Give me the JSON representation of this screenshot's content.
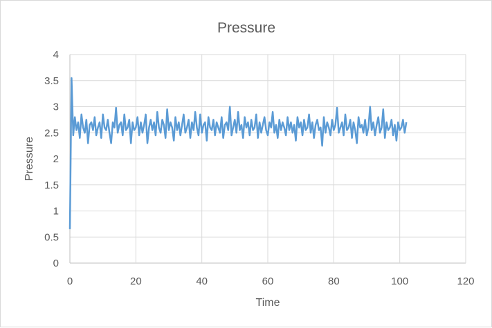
{
  "chart_data": {
    "type": "line",
    "title": "Pressure",
    "xlabel": "Time",
    "ylabel": "Pressure",
    "xlim": [
      0,
      120
    ],
    "ylim": [
      0,
      4
    ],
    "xticks": [
      "0",
      "20",
      "40",
      "60",
      "80",
      "100",
      "120"
    ],
    "yticks": [
      "0",
      "0.5",
      "1",
      "1.5",
      "2",
      "2.5",
      "3",
      "3.5",
      "4"
    ],
    "grid": true,
    "legend": "none",
    "series": [
      {
        "name": "Pressure",
        "color": "#5b9bd5",
        "x_start": 0,
        "x_step": 0.5,
        "values": [
          0.65,
          3.55,
          2.45,
          2.8,
          2.55,
          2.7,
          2.4,
          2.85,
          2.6,
          2.5,
          2.75,
          2.3,
          2.65,
          2.7,
          2.55,
          2.8,
          2.45,
          2.6,
          2.7,
          2.4,
          2.85,
          2.6,
          2.55,
          2.75,
          2.5,
          2.3,
          2.7,
          2.6,
          2.98,
          2.5,
          2.65,
          2.7,
          2.45,
          2.85,
          2.55,
          2.6,
          2.75,
          2.3,
          2.7,
          2.55,
          2.6,
          2.8,
          2.45,
          2.7,
          2.5,
          2.65,
          2.85,
          2.3,
          2.6,
          2.75,
          2.55,
          2.7,
          2.45,
          2.9,
          2.6,
          2.5,
          2.75,
          2.65,
          2.4,
          2.95,
          2.55,
          2.7,
          2.6,
          2.35,
          2.8,
          2.55,
          2.7,
          2.45,
          2.65,
          2.85,
          2.5,
          2.6,
          2.75,
          2.4,
          2.7,
          2.55,
          2.9,
          2.6,
          2.45,
          2.85,
          2.5,
          2.65,
          2.7,
          2.35,
          2.8,
          2.6,
          2.55,
          2.75,
          2.45,
          2.7,
          2.6,
          2.5,
          2.8,
          2.4,
          2.65,
          2.7,
          2.55,
          3.0,
          2.45,
          2.6,
          2.75,
          2.5,
          2.9,
          2.55,
          2.65,
          2.4,
          2.8,
          2.6,
          2.7,
          2.45,
          2.75,
          2.55,
          2.6,
          2.85,
          2.4,
          2.7,
          2.5,
          2.65,
          2.8,
          2.55,
          2.45,
          2.7,
          2.6,
          2.9,
          2.5,
          2.65,
          2.4,
          2.75,
          2.55,
          2.7,
          2.6,
          2.45,
          2.8,
          2.55,
          2.7,
          2.5,
          2.65,
          2.35,
          2.8,
          2.6,
          2.7,
          2.45,
          2.75,
          2.55,
          2.6,
          2.85,
          2.5,
          2.7,
          2.4,
          2.65,
          2.75,
          2.55,
          2.6,
          2.25,
          2.8,
          2.5,
          2.7,
          2.6,
          2.45,
          2.75,
          2.55,
          2.65,
          2.98,
          2.5,
          2.6,
          2.7,
          2.45,
          2.85,
          2.55,
          2.6,
          2.75,
          2.4,
          2.7,
          2.55,
          2.3,
          2.8,
          2.6,
          2.65,
          2.5,
          2.75,
          2.45,
          2.6,
          3.0,
          2.55,
          2.7,
          2.45,
          2.65,
          2.8,
          2.5,
          2.6,
          2.95,
          2.4,
          2.7,
          2.55,
          2.6,
          2.75,
          2.45,
          2.65,
          2.35,
          2.7,
          2.55,
          2.6,
          2.75,
          2.5,
          2.7
        ]
      }
    ]
  }
}
